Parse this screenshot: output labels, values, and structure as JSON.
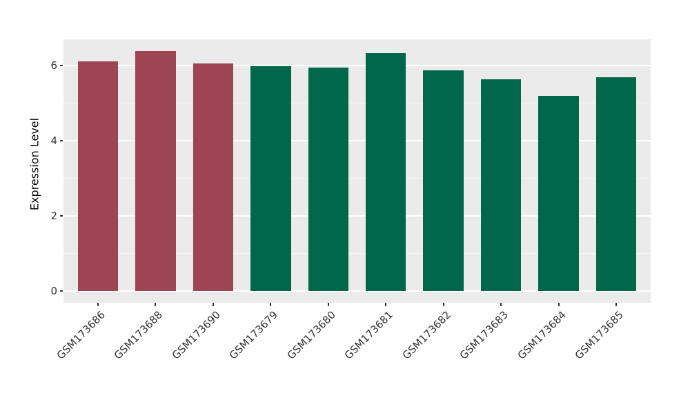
{
  "chart_data": {
    "type": "bar",
    "title": "",
    "xlabel": "",
    "ylabel": "Expression Level",
    "categories": [
      "GSM173686",
      "GSM173688",
      "GSM173690",
      "GSM173679",
      "GSM173680",
      "GSM173681",
      "GSM173682",
      "GSM173683",
      "GSM173684",
      "GSM173685"
    ],
    "values": [
      6.1,
      6.38,
      6.05,
      5.97,
      5.94,
      6.33,
      5.87,
      5.63,
      5.18,
      5.69
    ],
    "bar_colors": [
      "#9d4553",
      "#9d4553",
      "#9d4553",
      "#006849",
      "#006849",
      "#006849",
      "#006849",
      "#006849",
      "#006849",
      "#006849"
    ],
    "yticks": [
      0,
      2,
      4,
      6
    ],
    "minor_gridlines": [
      1,
      3,
      5
    ],
    "ylim": [
      -0.31,
      6.69
    ],
    "grid": true,
    "legend_position": "none",
    "x_tick_rotation_deg": 45,
    "style": {
      "panel_bg": "#ebebeb",
      "grid_major_color": "#ffffff",
      "grid_minor_color": "#f6f6f6",
      "tick_mark_color": "#333333",
      "tick_text_color": "#333333",
      "axis_title_color": "#000000",
      "bar_group_red": "#9d4553",
      "bar_group_green": "#006849"
    }
  }
}
